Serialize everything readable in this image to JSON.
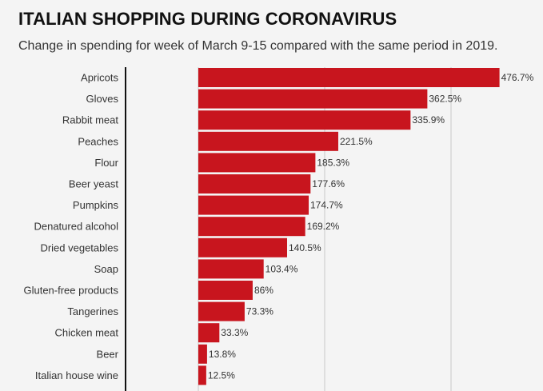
{
  "chart_data": {
    "type": "bar",
    "orientation": "horizontal",
    "title": "ITALIAN SHOPPING DURING CORONAVIRUS",
    "subtitle": "Change in spending for week of March 9-15 compared with the same period in 2019.",
    "categories": [
      "Apricots",
      "Gloves",
      "Rabbit meat",
      "Peaches",
      "Flour",
      "Beer yeast",
      "Pumpkins",
      "Denatured alcohol",
      "Dried vegetables",
      "Soap",
      "Gluten-free products",
      "Tangerines",
      "Chicken meat",
      "Beer",
      "Italian house wine"
    ],
    "values": [
      476.7,
      362.5,
      335.9,
      221.5,
      185.3,
      177.6,
      174.7,
      169.2,
      140.5,
      103.4,
      86,
      73.3,
      33.3,
      13.8,
      12.5
    ],
    "value_labels": [
      "476.7%",
      "362.5%",
      "335.9%",
      "221.5%",
      "185.3%",
      "177.6%",
      "174.7%",
      "169.2%",
      "140.5%",
      "103.4%",
      "86%",
      "73.3%",
      "33.3%",
      "13.8%",
      "12.5%"
    ],
    "xlim": [
      0,
      560
    ],
    "gridlines": [
      0,
      200,
      400
    ],
    "grid": true,
    "bar_color": "#c8151e"
  }
}
